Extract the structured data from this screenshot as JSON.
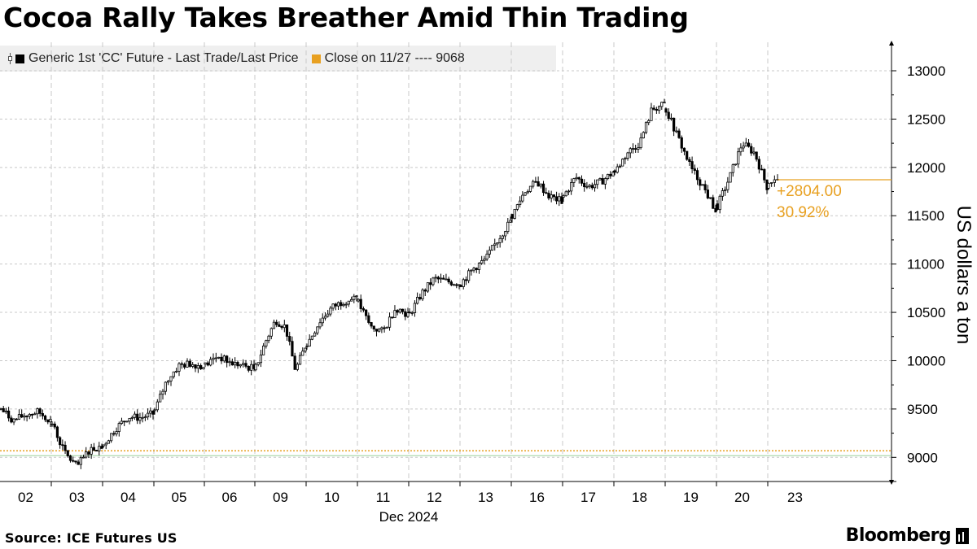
{
  "title": "Cocoa Rally Takes Breather Amid Thin Trading",
  "legend": {
    "series_label": "Generic 1st 'CC' Future - Last Trade/Last Price",
    "reference_label": "Close on 11/27 ---- 9068"
  },
  "source": "Source: ICE Futures US",
  "brand": "Bloomberg",
  "colors": {
    "accent": "#e8a020",
    "candle": "#000000",
    "grid": "#c8c8c8",
    "legend_bg": "#efefef",
    "baseline": "#9bd09b"
  },
  "chart_data": {
    "type": "candlestick",
    "title": "Cocoa Rally Takes Breather Amid Thin Trading",
    "ylabel": "US dollars a ton",
    "xlabel": "Dec 2024",
    "ylim": [
      8750,
      13250
    ],
    "yticks": [
      9000,
      9500,
      10000,
      10500,
      11000,
      11500,
      12000,
      12500,
      13000
    ],
    "x_categories": [
      "02",
      "03",
      "04",
      "05",
      "06",
      "09",
      "10",
      "11",
      "12",
      "13",
      "16",
      "17",
      "18",
      "19",
      "20",
      "23"
    ],
    "x_month_label": "Dec 2024",
    "grid": true,
    "reference_line": {
      "label": "Close on 11/27",
      "value": 9068
    },
    "last_price": 11872,
    "change_label": "+2804.00",
    "change_pct_label": "30.92%",
    "legend_position": "top-left",
    "series": [
      {
        "name": "Generic 1st 'CC' Future - Last Trade/Last Price",
        "daily_path": [
          [
            9500,
            9380,
            9440,
            9470,
            9380
          ],
          [
            9350,
            9050,
            8900,
            9080,
            9120
          ],
          [
            9130,
            9300,
            9420,
            9410,
            9450
          ],
          [
            9480,
            9800,
            9950,
            9970,
            9940
          ],
          [
            9950,
            10050,
            9980,
            9950,
            9920
          ],
          [
            9930,
            10200,
            10420,
            10350,
            9900,
            10150
          ],
          [
            10170,
            10400,
            10550,
            10620,
            10650
          ],
          [
            10600,
            10350,
            10300,
            10550,
            10480
          ],
          [
            10480,
            10700,
            10850,
            10820,
            10800
          ],
          [
            10800,
            10950,
            11050,
            11250,
            11450
          ],
          [
            11500,
            11750,
            11850,
            11700,
            11650
          ],
          [
            11700,
            11900,
            11800,
            11850,
            11950
          ],
          [
            11950,
            12150,
            12250,
            12600,
            12650
          ],
          [
            12600,
            12300,
            12000,
            11800,
            11550
          ],
          [
            11600,
            11900,
            12250,
            12150,
            11800
          ],
          [
            11800,
            11900,
            11872
          ]
        ]
      }
    ]
  }
}
